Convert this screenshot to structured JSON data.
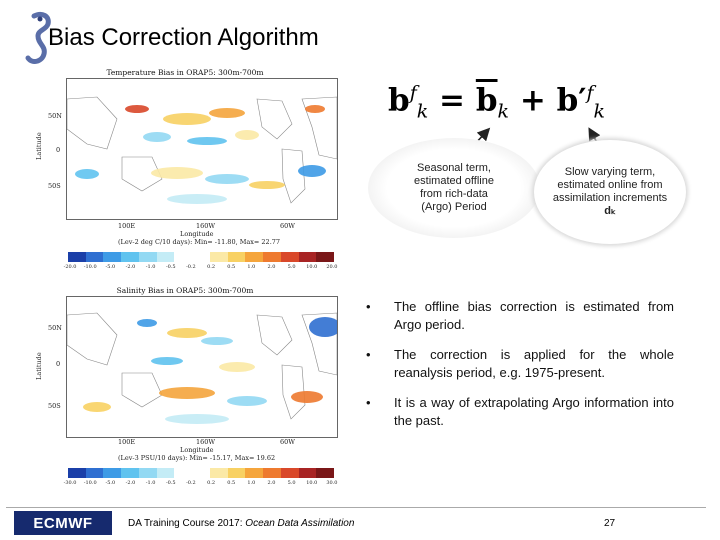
{
  "slide": {
    "title": "Bias Correction Algorithm",
    "logo_icon": "seahorse-logo-icon"
  },
  "formula_text": "b^f_k = b̄_k + b'^f_k",
  "formula": {
    "lhs_symbol": "b",
    "lhs_sup": "f",
    "lhs_sub": "k",
    "equals": "=",
    "bar_symbol": "b",
    "bar_sub": "k",
    "plus": "+",
    "prime_symbol": "b′",
    "prime_sup": "f",
    "prime_sub": "k"
  },
  "annotations": {
    "seasonal": {
      "line1": "Seasonal term,",
      "line2": "estimated offline",
      "line3": "from rich-data",
      "line4": "(Argo) Period"
    },
    "slow": {
      "line1": "Slow varying term,",
      "line2": "estimated online from",
      "line3": "assimilation increments",
      "line4": "dₖ"
    }
  },
  "maps": {
    "temperature": {
      "title": "Temperature Bias in ORAP5: 300m-700m",
      "lat_labels": [
        "50N",
        "0",
        "50S"
      ],
      "lat_axis": "Latitude",
      "lon_labels": [
        "100E",
        "160W",
        "60W"
      ],
      "lon_axis": "Longitude",
      "stats": "(Lev-2 deg C/10 days): Min= -11.80, Max= 22.77",
      "colorbar_ticks": [
        "-20.0",
        "-10.0",
        "-5.0",
        "-2.0",
        "-1.0",
        "-0.5",
        "-0.2",
        "0.2",
        "0.5",
        "1.0",
        "2.0",
        "5.0",
        "10.0",
        "20.0"
      ]
    },
    "salinity": {
      "title": "Salinity Bias in ORAP5: 300m-700m",
      "lat_labels": [
        "50N",
        "0",
        "50S"
      ],
      "lat_axis": "Latitude",
      "lon_labels": [
        "100E",
        "160W",
        "60W"
      ],
      "lon_axis": "Longitude",
      "stats": "(Lev-3 PSU/10 days): Min= -15.17, Max= 19.62",
      "colorbar_ticks": [
        "-30.0",
        "-10.0",
        "-5.0",
        "-2.0",
        "-1.0",
        "-0.5",
        "-0.2",
        "0.2",
        "0.5",
        "1.0",
        "2.0",
        "5.0",
        "10.0",
        "30.0"
      ]
    },
    "colorbar_colors": [
      "#1b3fa8",
      "#2f6fd1",
      "#3e9be6",
      "#60c3ef",
      "#93d9f3",
      "#c4ecf6",
      "#ffffff",
      "#ffffff",
      "#fbe9a6",
      "#f8d163",
      "#f5a53c",
      "#ee7a2f",
      "#d9482a",
      "#a82424",
      "#7a1718"
    ]
  },
  "bullets": [
    {
      "marker": "•",
      "text": "The offline bias correction is estimated from Argo period."
    },
    {
      "marker": "•",
      "text": "The correction is applied  for the whole reanalysis period, e.g. 1975-present."
    },
    {
      "marker": "•",
      "text": "It is a way of extrapolating Argo information into the past."
    }
  ],
  "footer": {
    "logo_text": "ECMWF",
    "course_prefix": "DA Training Course 2017: ",
    "course_topic": "Ocean Data Assimilation",
    "page_number": "27"
  }
}
